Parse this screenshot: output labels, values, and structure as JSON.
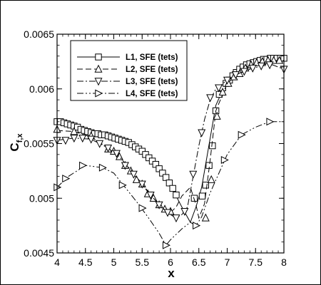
{
  "chart_data": {
    "type": "line",
    "xlabel": "x",
    "ylabel_main": "C",
    "ylabel_sub": "f,x",
    "xlim": [
      4,
      8
    ],
    "ylim": [
      0.0045,
      0.0065
    ],
    "xticks": [
      4,
      4.5,
      5,
      5.5,
      6,
      6.5,
      7,
      7.5,
      8
    ],
    "xtick_labels": [
      "4",
      "4.5",
      "5",
      "5.5",
      "6",
      "6.5",
      "7",
      "7.5",
      "8"
    ],
    "yticks": [
      0.0045,
      0.005,
      0.0055,
      0.006,
      0.0065
    ],
    "ytick_labels": [
      "0.0045",
      "0.005",
      "0.0055",
      "0.006",
      "0.0065"
    ],
    "grid": false,
    "legend_position": "top-left",
    "series": [
      {
        "name": "L1, SFE (tets)",
        "marker": "square",
        "dash": "none",
        "line": [
          [
            4.0,
            0.0057
          ],
          [
            4.2,
            0.00568
          ],
          [
            4.4,
            0.00564
          ],
          [
            4.6,
            0.0056
          ],
          [
            4.8,
            0.00558
          ],
          [
            5.0,
            0.00556
          ],
          [
            5.2,
            0.00552
          ],
          [
            5.4,
            0.00546
          ],
          [
            5.6,
            0.00538
          ],
          [
            5.8,
            0.00527
          ],
          [
            6.0,
            0.00512
          ],
          [
            6.2,
            0.00492
          ],
          [
            6.35,
            0.00478
          ],
          [
            6.45,
            0.00492
          ],
          [
            6.55,
            0.0051
          ],
          [
            6.65,
            0.0054
          ],
          [
            6.8,
            0.00585
          ],
          [
            7.0,
            0.00608
          ],
          [
            7.2,
            0.00618
          ],
          [
            7.4,
            0.00624
          ],
          [
            7.6,
            0.00627
          ],
          [
            7.8,
            0.00628
          ],
          [
            8.0,
            0.00628
          ]
        ],
        "points": [
          [
            4.0,
            0.0057
          ],
          [
            4.06,
            0.0057
          ],
          [
            4.12,
            0.00569
          ],
          [
            4.18,
            0.00568
          ],
          [
            4.24,
            0.00567
          ],
          [
            4.3,
            0.00566
          ],
          [
            4.36,
            0.00565
          ],
          [
            4.42,
            0.00563
          ],
          [
            4.48,
            0.00562
          ],
          [
            4.54,
            0.00561
          ],
          [
            4.6,
            0.0056
          ],
          [
            4.66,
            0.00559
          ],
          [
            4.72,
            0.00559
          ],
          [
            4.78,
            0.00558
          ],
          [
            4.84,
            0.00558
          ],
          [
            4.9,
            0.00557
          ],
          [
            4.96,
            0.00556
          ],
          [
            5.02,
            0.00555
          ],
          [
            5.08,
            0.00554
          ],
          [
            5.14,
            0.00553
          ],
          [
            5.2,
            0.00552
          ],
          [
            5.26,
            0.00551
          ],
          [
            5.32,
            0.00549
          ],
          [
            5.38,
            0.00547
          ],
          [
            5.44,
            0.00545
          ],
          [
            5.5,
            0.00543
          ],
          [
            5.56,
            0.0054
          ],
          [
            5.62,
            0.00537
          ],
          [
            5.68,
            0.00534
          ],
          [
            5.74,
            0.00531
          ],
          [
            5.8,
            0.00527
          ],
          [
            5.86,
            0.00523
          ],
          [
            5.92,
            0.00519
          ],
          [
            5.98,
            0.00514
          ],
          [
            6.04,
            0.00509
          ],
          [
            6.1,
            0.00503
          ],
          [
            6.42,
            0.005
          ],
          [
            6.56,
            0.00502
          ],
          [
            6.62,
            0.00512
          ],
          [
            6.68,
            0.0053
          ],
          [
            6.74,
            0.00548
          ],
          [
            6.8,
            0.0058
          ],
          [
            6.86,
            0.00595
          ],
          [
            6.92,
            0.00601
          ],
          [
            6.98,
            0.00605
          ],
          [
            7.04,
            0.00608
          ],
          [
            7.1,
            0.00612
          ],
          [
            7.16,
            0.00615
          ],
          [
            7.22,
            0.00618
          ],
          [
            7.28,
            0.0062
          ],
          [
            7.34,
            0.00622
          ],
          [
            7.4,
            0.00623
          ],
          [
            7.46,
            0.00624
          ],
          [
            7.52,
            0.00625
          ],
          [
            7.58,
            0.00626
          ],
          [
            7.64,
            0.00627
          ],
          [
            7.7,
            0.00627
          ],
          [
            7.76,
            0.00628
          ],
          [
            7.82,
            0.00628
          ],
          [
            7.88,
            0.00628
          ],
          [
            7.94,
            0.00628
          ],
          [
            8.0,
            0.00628
          ]
        ]
      },
      {
        "name": "L2, SFE (tets)",
        "marker": "triangle-up",
        "dash": "8,4",
        "line": [
          [
            4.0,
            0.00562
          ],
          [
            4.3,
            0.00561
          ],
          [
            4.6,
            0.00556
          ],
          [
            4.9,
            0.00546
          ],
          [
            5.1,
            0.00538
          ],
          [
            5.3,
            0.00525
          ],
          [
            5.5,
            0.00512
          ],
          [
            5.7,
            0.005
          ],
          [
            5.9,
            0.0049
          ],
          [
            6.0,
            0.00487
          ],
          [
            6.1,
            0.00492
          ],
          [
            6.2,
            0.00502
          ],
          [
            6.35,
            0.0051
          ],
          [
            6.45,
            0.00494
          ],
          [
            6.5,
            0.00482
          ],
          [
            6.6,
            0.00495
          ],
          [
            6.7,
            0.00535
          ],
          [
            6.8,
            0.0058
          ],
          [
            7.0,
            0.00605
          ],
          [
            7.2,
            0.00614
          ],
          [
            7.4,
            0.00621
          ],
          [
            7.6,
            0.00625
          ],
          [
            7.8,
            0.00626
          ],
          [
            8.0,
            0.00626
          ]
        ],
        "points": [
          [
            4.0,
            0.00563
          ],
          [
            4.3,
            0.00561
          ],
          [
            4.6,
            0.00557
          ],
          [
            4.9,
            0.00545
          ],
          [
            5.0,
            0.00543
          ],
          [
            5.1,
            0.00538
          ],
          [
            5.2,
            0.0053
          ],
          [
            5.3,
            0.00525
          ],
          [
            5.4,
            0.00517
          ],
          [
            5.5,
            0.00513
          ],
          [
            5.6,
            0.00504
          ],
          [
            5.7,
            0.005
          ],
          [
            5.8,
            0.00494
          ],
          [
            5.9,
            0.0049
          ],
          [
            6.0,
            0.00488
          ],
          [
            6.62,
            0.00482
          ],
          [
            6.72,
            0.00517
          ],
          [
            6.82,
            0.00575
          ],
          [
            6.92,
            0.00597
          ],
          [
            7.02,
            0.00605
          ],
          [
            7.12,
            0.00611
          ],
          [
            7.22,
            0.00614
          ],
          [
            7.32,
            0.00619
          ],
          [
            7.42,
            0.00622
          ],
          [
            7.52,
            0.00624
          ],
          [
            7.62,
            0.00625
          ],
          [
            7.72,
            0.00626
          ],
          [
            7.82,
            0.00626
          ],
          [
            7.92,
            0.00626
          ]
        ]
      },
      {
        "name": "L3, SFE (tets)",
        "marker": "triangle-down",
        "dash": "9,3,2,3",
        "line": [
          [
            4.0,
            0.00553
          ],
          [
            4.3,
            0.00555
          ],
          [
            4.6,
            0.00554
          ],
          [
            4.9,
            0.00546
          ],
          [
            5.1,
            0.00538
          ],
          [
            5.3,
            0.00526
          ],
          [
            5.5,
            0.00513
          ],
          [
            5.7,
            0.005
          ],
          [
            5.9,
            0.00489
          ],
          [
            6.0,
            0.00485
          ],
          [
            6.1,
            0.00482
          ],
          [
            6.2,
            0.00485
          ],
          [
            6.3,
            0.00492
          ],
          [
            6.4,
            0.0052
          ],
          [
            6.5,
            0.00548
          ],
          [
            6.6,
            0.00572
          ],
          [
            6.7,
            0.0059
          ],
          [
            6.8,
            0.006
          ],
          [
            7.0,
            0.00608
          ],
          [
            7.2,
            0.00614
          ],
          [
            7.4,
            0.00618
          ],
          [
            7.6,
            0.00621
          ],
          [
            7.8,
            0.00622
          ],
          [
            8.0,
            0.00618
          ]
        ],
        "points": [
          [
            4.0,
            0.00553
          ],
          [
            4.15,
            0.00553
          ],
          [
            4.3,
            0.00555
          ],
          [
            4.45,
            0.00555
          ],
          [
            4.6,
            0.00554
          ],
          [
            4.75,
            0.0055
          ],
          [
            4.9,
            0.00546
          ],
          [
            5.05,
            0.00541
          ],
          [
            5.2,
            0.0053
          ],
          [
            5.35,
            0.00522
          ],
          [
            5.5,
            0.00513
          ],
          [
            5.65,
            0.00503
          ],
          [
            5.8,
            0.00494
          ],
          [
            5.95,
            0.00487
          ],
          [
            6.1,
            0.00482
          ],
          [
            6.25,
            0.00488
          ],
          [
            6.4,
            0.00522
          ],
          [
            6.55,
            0.0056
          ],
          [
            6.7,
            0.00592
          ],
          [
            6.85,
            0.00601
          ],
          [
            7.0,
            0.00608
          ],
          [
            7.15,
            0.00613
          ],
          [
            7.3,
            0.00616
          ],
          [
            7.45,
            0.00619
          ],
          [
            7.6,
            0.00621
          ],
          [
            7.75,
            0.00622
          ],
          [
            8.0,
            0.00618
          ]
        ]
      },
      {
        "name": "L4, SFE (tets)",
        "marker": "triangle-right",
        "dash": "9,3,2,3,2,3",
        "line": [
          [
            4.0,
            0.0051
          ],
          [
            4.2,
            0.0052
          ],
          [
            4.5,
            0.0053
          ],
          [
            4.8,
            0.00528
          ],
          [
            5.0,
            0.00523
          ],
          [
            5.2,
            0.0051
          ],
          [
            5.4,
            0.00497
          ],
          [
            5.6,
            0.00483
          ],
          [
            5.8,
            0.00468
          ],
          [
            5.92,
            0.00457
          ],
          [
            6.0,
            0.00462
          ],
          [
            6.2,
            0.00472
          ],
          [
            6.35,
            0.00478
          ],
          [
            6.45,
            0.00475
          ],
          [
            6.55,
            0.00483
          ],
          [
            6.7,
            0.00505
          ],
          [
            7.0,
            0.0054
          ],
          [
            7.25,
            0.00558
          ],
          [
            7.5,
            0.00565
          ],
          [
            7.75,
            0.0057
          ],
          [
            8.0,
            0.0057
          ]
        ],
        "points": [
          [
            4.0,
            0.0051
          ],
          [
            4.15,
            0.00518
          ],
          [
            4.45,
            0.0053
          ],
          [
            4.8,
            0.00528
          ],
          [
            5.15,
            0.00512
          ],
          [
            5.5,
            0.00491
          ],
          [
            5.92,
            0.00457
          ],
          [
            6.45,
            0.00475
          ],
          [
            6.95,
            0.00535
          ],
          [
            7.25,
            0.00558
          ],
          [
            7.75,
            0.0057
          ]
        ]
      }
    ]
  }
}
